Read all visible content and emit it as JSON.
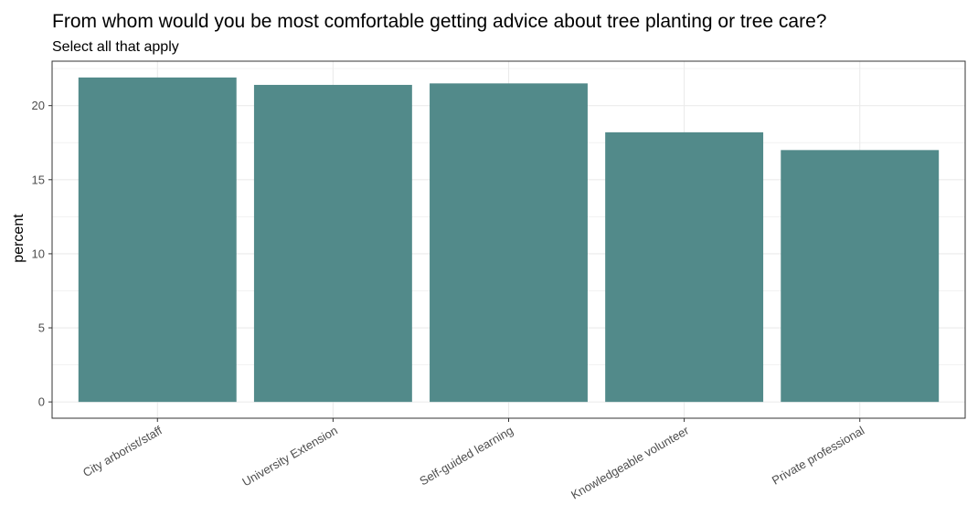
{
  "chart_data": {
    "type": "bar",
    "title": "From whom would you be most comfortable getting advice about tree planting or tree care?",
    "subtitle": "Select all that apply",
    "xlabel": "",
    "ylabel": "percent",
    "categories": [
      "City arborist/staff",
      "University Extension",
      "Self-guided learning",
      "Knowledgeable volunteer",
      "Private professional"
    ],
    "values": [
      21.9,
      21.4,
      21.5,
      18.2,
      17.0
    ],
    "ylim": [
      -1.1,
      23.0
    ],
    "yticks": [
      0,
      5,
      10,
      15,
      20
    ],
    "grid": true,
    "legend": "none",
    "bar_color": "#528a8a",
    "panel_border_color": "#333333",
    "grid_color": "#ebebeb"
  }
}
